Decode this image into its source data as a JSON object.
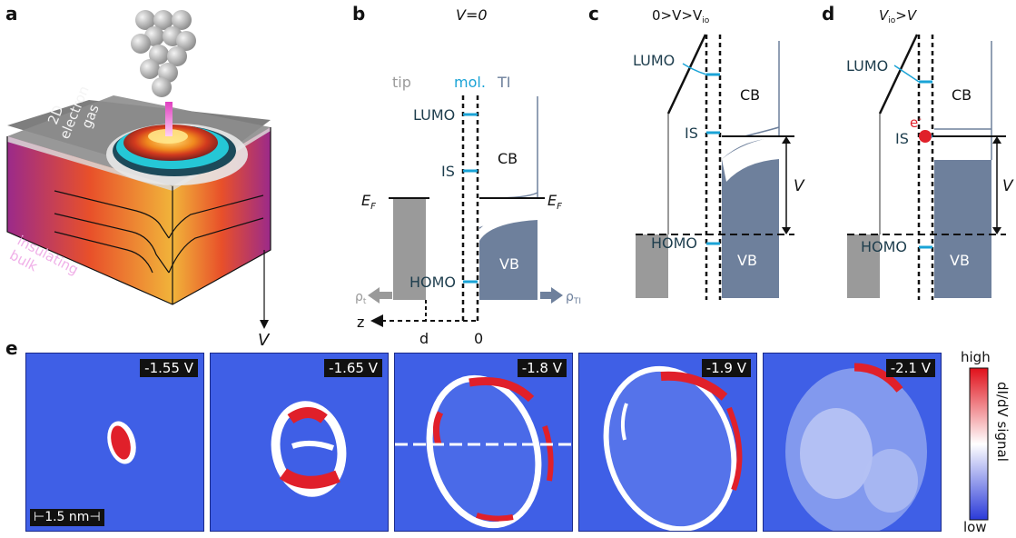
{
  "panels": {
    "a": {
      "label": "a",
      "surface_text": "2D electron gas",
      "bulk_text": "insulating bulk",
      "axis_label": "V"
    },
    "b": {
      "label": "b",
      "title": "V=0",
      "tip": "tip",
      "mol": "mol.",
      "ti": "TI",
      "lumo": "LUMO",
      "is": "IS",
      "homo": "HOMO",
      "cb": "CB",
      "vb": "VB",
      "ef_left": "E",
      "ef_right": "E",
      "ef_sub": "F",
      "rho_t": "ρ",
      "rho_t_sub": "t",
      "rho_ti": "ρ",
      "rho_ti_sub": "TI",
      "z": "z",
      "d": "d",
      "zero": "0"
    },
    "c": {
      "label": "c",
      "title": "0>V>V",
      "title_sub": "io",
      "lumo": "LUMO",
      "is": "IS",
      "homo": "HOMO",
      "cb": "CB",
      "vb": "VB",
      "v": "V"
    },
    "d": {
      "label": "d",
      "title_pre": "V",
      "title_sub": "io",
      "title_post": ">V",
      "lumo": "LUMO",
      "is": "IS",
      "homo": "HOMO",
      "cb": "CB",
      "vb": "VB",
      "v": "V",
      "electron": "e",
      "electron_sup": "-"
    },
    "e": {
      "label": "e",
      "maps": [
        {
          "voltage": "-1.55 V"
        },
        {
          "voltage": "-1.65 V"
        },
        {
          "voltage": "-1.8 V"
        },
        {
          "voltage": "-1.9 V"
        },
        {
          "voltage": "-2.1 V"
        }
      ],
      "scalebar": "1.5 nm",
      "colorbar": {
        "high": "high",
        "low": "low",
        "title": "dI/dV signal"
      }
    }
  },
  "colors": {
    "tip_gray": "#9a9a9a",
    "band_blue": "#6e809c",
    "molecule_cyan": "#1aa3d6",
    "map_background": "#3f5fe6",
    "hot_red": "#e0202a",
    "electron_red": "#e0202a"
  }
}
